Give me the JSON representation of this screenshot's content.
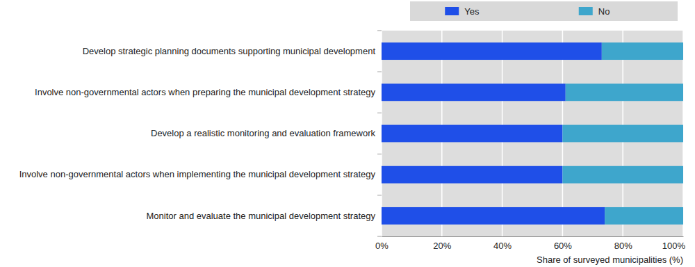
{
  "chart_data": {
    "type": "bar",
    "orientation": "horizontal",
    "stacked": true,
    "categories": [
      "Develop strategic planning documents supporting municipal development",
      "Involve non-governmental actors when preparing the municipal development strategy",
      "Develop a realistic monitoring and evaluation framework",
      "Involve non-governmental actors when implementing the municipal development strategy",
      "Monitor and evaluate the municipal development strategy"
    ],
    "series": [
      {
        "name": "Yes",
        "color": "#1f4fe8",
        "values": [
          73,
          61,
          60,
          60,
          74
        ]
      },
      {
        "name": "No",
        "color": "#3ea6cc",
        "values": [
          27,
          39,
          40,
          40,
          26
        ]
      }
    ],
    "xlim": [
      0,
      100
    ],
    "xticks": [
      {
        "value": 0,
        "label": "0%"
      },
      {
        "value": 20,
        "label": "20%"
      },
      {
        "value": 40,
        "label": "40%"
      },
      {
        "value": 60,
        "label": "60%"
      },
      {
        "value": 80,
        "label": "80%"
      },
      {
        "value": 100,
        "label": "100%"
      }
    ],
    "xlabel": "Share of surveyed municipalities (%)",
    "grid": true,
    "legend": "top"
  }
}
